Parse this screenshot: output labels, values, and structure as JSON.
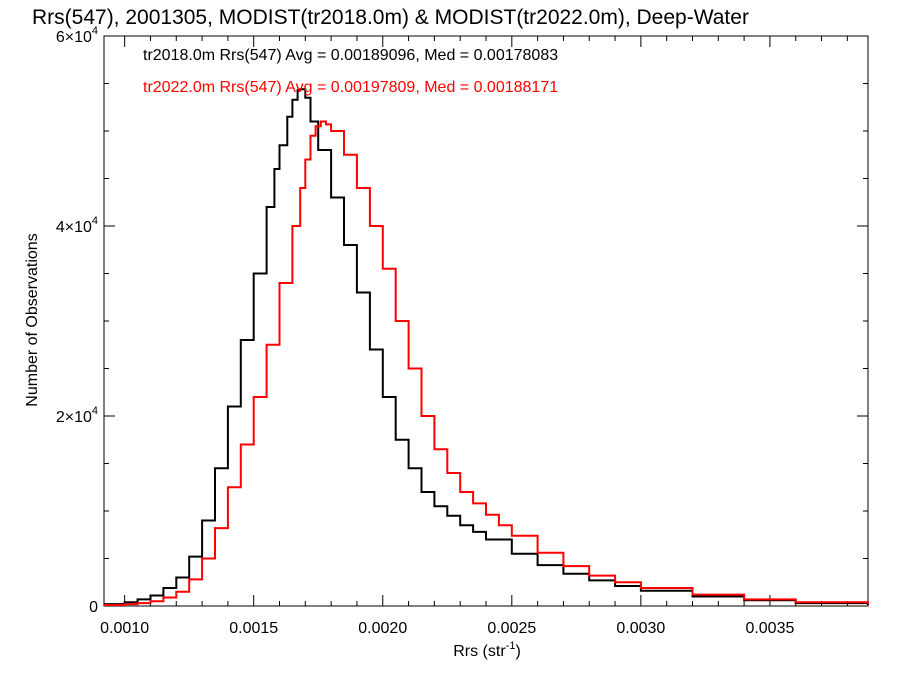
{
  "colors": {
    "series_a": "#000000",
    "series_b": "#ff0000"
  },
  "chart_data": {
    "type": "line",
    "title": "Rrs(547), 2001305, MODIST(tr2018.0m) & MODIST(tr2022.0m), Deep-Water",
    "xlabel": "Rrs (str",
    "xlabel_sup": "-1",
    "xlabel_tail": ")",
    "ylabel": "Number of Observations",
    "xlim": [
      0.00092,
      0.00388
    ],
    "ylim": [
      0,
      60000
    ],
    "grid": false,
    "x_ticks": [
      0.001,
      0.0015,
      0.002,
      0.0025,
      0.003,
      0.0035
    ],
    "x_tick_labels": [
      "0.0010",
      "0.0015",
      "0.0020",
      "0.0025",
      "0.0030",
      "0.0035"
    ],
    "y_ticks": [
      0,
      20000,
      40000,
      60000
    ],
    "y_tick_labels": [
      {
        "base": "0",
        "exp": ""
      },
      {
        "base": "2×10",
        "exp": "4"
      },
      {
        "base": "4×10",
        "exp": "4"
      },
      {
        "base": "6×10",
        "exp": "4"
      }
    ],
    "annotations": [
      "tr2018.0m Rrs(547) Avg = 0.00189096, Med = 0.00178083",
      "tr2022.0m Rrs(547) Avg = 0.00197809, Med = 0.00188171"
    ],
    "series": [
      {
        "x": [
          0.00092,
          0.001,
          0.00105,
          0.0011,
          0.00115,
          0.0012,
          0.00125,
          0.0013,
          0.00135,
          0.0014,
          0.00145,
          0.0015,
          0.00155,
          0.00158,
          0.0016,
          0.00163,
          0.00165,
          0.00167,
          0.00168,
          0.0017,
          0.00172,
          0.00175,
          0.0018,
          0.00185,
          0.0019,
          0.00195,
          0.002,
          0.00205,
          0.0021,
          0.00215,
          0.0022,
          0.00225,
          0.0023,
          0.00235,
          0.0024,
          0.0025,
          0.0026,
          0.0027,
          0.0028,
          0.0029,
          0.003,
          0.0032,
          0.0034,
          0.0036,
          0.00388
        ],
        "y": [
          200,
          400,
          700,
          1100,
          1900,
          3000,
          5200,
          9000,
          14500,
          21000,
          28000,
          35000,
          42000,
          46000,
          48500,
          51500,
          53300,
          54300,
          54400,
          53500,
          51000,
          48000,
          43000,
          38000,
          33000,
          27000,
          22000,
          17500,
          14500,
          12000,
          10500,
          9500,
          8500,
          7800,
          7000,
          5500,
          4300,
          3400,
          2700,
          2100,
          1600,
          1000,
          600,
          300,
          100
        ]
      },
      {
        "x": [
          0.00092,
          0.001,
          0.00105,
          0.0011,
          0.00115,
          0.0012,
          0.00125,
          0.0013,
          0.00135,
          0.0014,
          0.00145,
          0.0015,
          0.00155,
          0.0016,
          0.00165,
          0.00168,
          0.0017,
          0.00172,
          0.00174,
          0.00176,
          0.00178,
          0.0018,
          0.00185,
          0.0019,
          0.00195,
          0.002,
          0.00205,
          0.0021,
          0.00215,
          0.0022,
          0.00225,
          0.0023,
          0.00235,
          0.0024,
          0.00245,
          0.0025,
          0.0026,
          0.0027,
          0.0028,
          0.0029,
          0.003,
          0.0032,
          0.0034,
          0.0036,
          0.00388
        ],
        "y": [
          100,
          200,
          300,
          500,
          900,
          1500,
          2800,
          5000,
          8200,
          12500,
          17000,
          22000,
          27500,
          34000,
          40000,
          44000,
          47000,
          49500,
          50500,
          51000,
          50700,
          50000,
          47500,
          44000,
          40000,
          35500,
          30000,
          25000,
          20000,
          16500,
          14000,
          12000,
          10800,
          9600,
          8500,
          7400,
          5600,
          4200,
          3200,
          2500,
          1900,
          1200,
          700,
          400,
          200
        ]
      }
    ]
  }
}
